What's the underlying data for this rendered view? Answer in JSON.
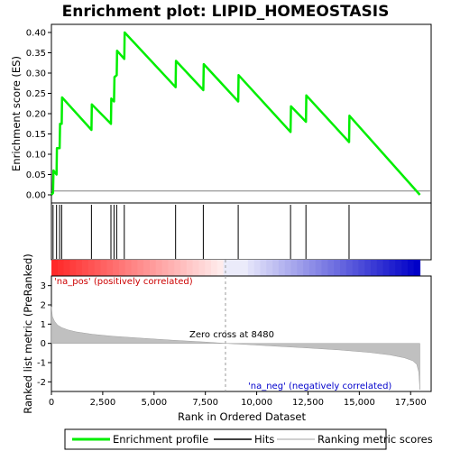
{
  "chart_data": {
    "type": "line",
    "title": "Enrichment plot: LIPID_HOMEOSTASIS",
    "colors": {
      "enrichment": "#00ee00",
      "hits": "#000000",
      "metric_fill": "#c0c0c0",
      "pos_band": "#ff0000",
      "neg_band": "#0000ff",
      "zero_line": "#999999"
    },
    "panels": {
      "enrichment": {
        "ylabel": "Enrichment score (ES)",
        "ylim": [
          -0.02,
          0.42
        ],
        "yticks": [
          0.0,
          0.05,
          0.1,
          0.15,
          0.2,
          0.25,
          0.3,
          0.35,
          0.4
        ],
        "ytick_labels": [
          "0.00",
          "0.05",
          "0.10",
          "0.15",
          "0.20",
          "0.25",
          "0.30",
          "0.35",
          "0.40"
        ],
        "series": [
          {
            "name": "Enrichment profile",
            "x": [
              0,
              80,
              100,
              250,
              270,
              400,
              420,
              500,
              520,
              1950,
              1970,
              2900,
              2920,
              3050,
              3070,
              3180,
              3200,
              3550,
              3570,
              6050,
              6070,
              7400,
              7420,
              9100,
              9120,
              11650,
              11670,
              12400,
              12420,
              14500,
              14520,
              17950
            ],
            "y": [
              0.0,
              0.005,
              0.06,
              0.05,
              0.115,
              0.115,
              0.175,
              0.175,
              0.24,
              0.16,
              0.223,
              0.175,
              0.237,
              0.23,
              0.29,
              0.295,
              0.355,
              0.335,
              0.4,
              0.265,
              0.33,
              0.258,
              0.322,
              0.23,
              0.295,
              0.155,
              0.218,
              0.18,
              0.245,
              0.13,
              0.195,
              0.0
            ]
          }
        ]
      },
      "hits": {
        "positions": [
          80,
          250,
          400,
          500,
          1950,
          2900,
          3050,
          3180,
          3550,
          6050,
          7400,
          9100,
          11650,
          12400,
          14500
        ]
      },
      "metric": {
        "ylabel": "Ranked list metric (PreRanked)",
        "xlabel": "Rank in Ordered Dataset",
        "ylim": [
          -2.5,
          3.5
        ],
        "yticks": [
          -2,
          -1,
          0,
          1,
          2,
          3
        ],
        "ytick_labels": [
          "-2",
          "-1",
          "0",
          "1",
          "2",
          "3"
        ],
        "xlim": [
          0,
          18500
        ],
        "xticks": [
          0,
          2500,
          5000,
          7500,
          10000,
          12500,
          15000,
          17500
        ],
        "xtick_labels": [
          "0",
          "2,500",
          "5,000",
          "7,500",
          "10,000",
          "12,500",
          "15,000",
          "17,500"
        ],
        "curve_x": [
          0,
          50,
          150,
          300,
          500,
          800,
          1200,
          2000,
          3000,
          4500,
          6000,
          7500,
          8480,
          9500,
          11000,
          12500,
          14000,
          15500,
          16500,
          17200,
          17600,
          17800,
          17900,
          17950
        ],
        "curve_y": [
          1.9,
          1.4,
          1.15,
          0.95,
          0.82,
          0.7,
          0.6,
          0.47,
          0.37,
          0.26,
          0.16,
          0.07,
          0.0,
          -0.06,
          -0.15,
          -0.24,
          -0.34,
          -0.47,
          -0.6,
          -0.75,
          -0.9,
          -1.1,
          -1.5,
          -2.4
        ],
        "zero_cross_label": "Zero cross at 8480",
        "zero_cross": 8480,
        "pos_label": "'na_pos' (positively correlated)",
        "neg_label": "'na_neg' (negatively correlated)"
      },
      "band_n": 17950
    },
    "legend": {
      "placement": "bottom",
      "items": [
        {
          "name": "Enrichment profile",
          "color": "#00ee00"
        },
        {
          "name": "Hits",
          "color": "#000000"
        },
        {
          "name": "Ranking metric scores",
          "color": "#c0c0c0"
        }
      ]
    }
  }
}
